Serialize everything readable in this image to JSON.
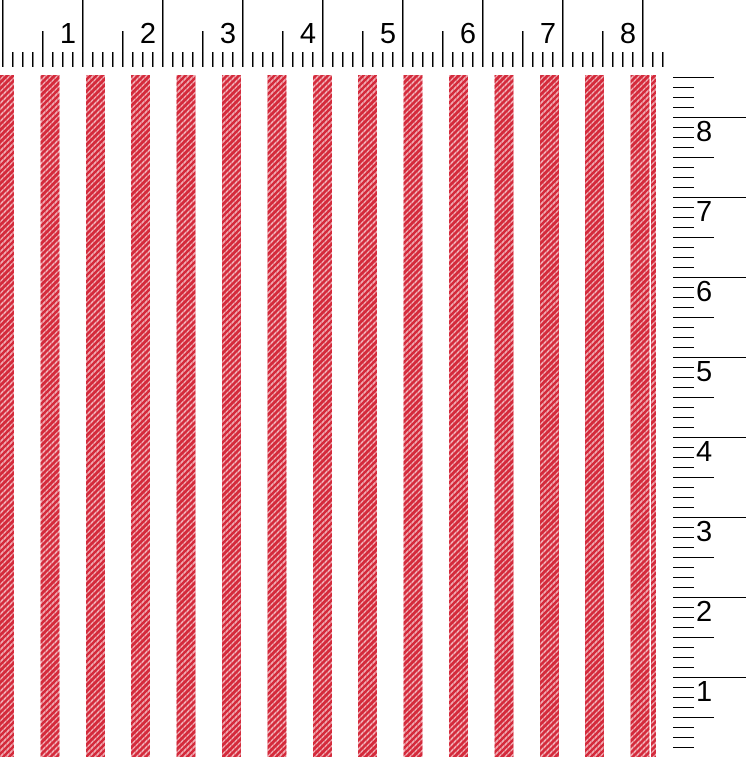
{
  "top_ruler": {
    "labels": [
      "1",
      "2",
      "3",
      "4",
      "5",
      "6",
      "7",
      "8"
    ]
  },
  "right_ruler": {
    "labels": [
      "8",
      "7",
      "6",
      "5",
      "4",
      "3",
      "2",
      "1"
    ]
  },
  "fabric": {
    "pattern_description": "red and white vertical awning stripes with diagonal twill weave texture",
    "colors": {
      "stripe_red": "#d42a3b",
      "twill_highlight": "#f0acb4",
      "ground_white": "#ffffff",
      "ruler_tick": "#000000"
    }
  }
}
